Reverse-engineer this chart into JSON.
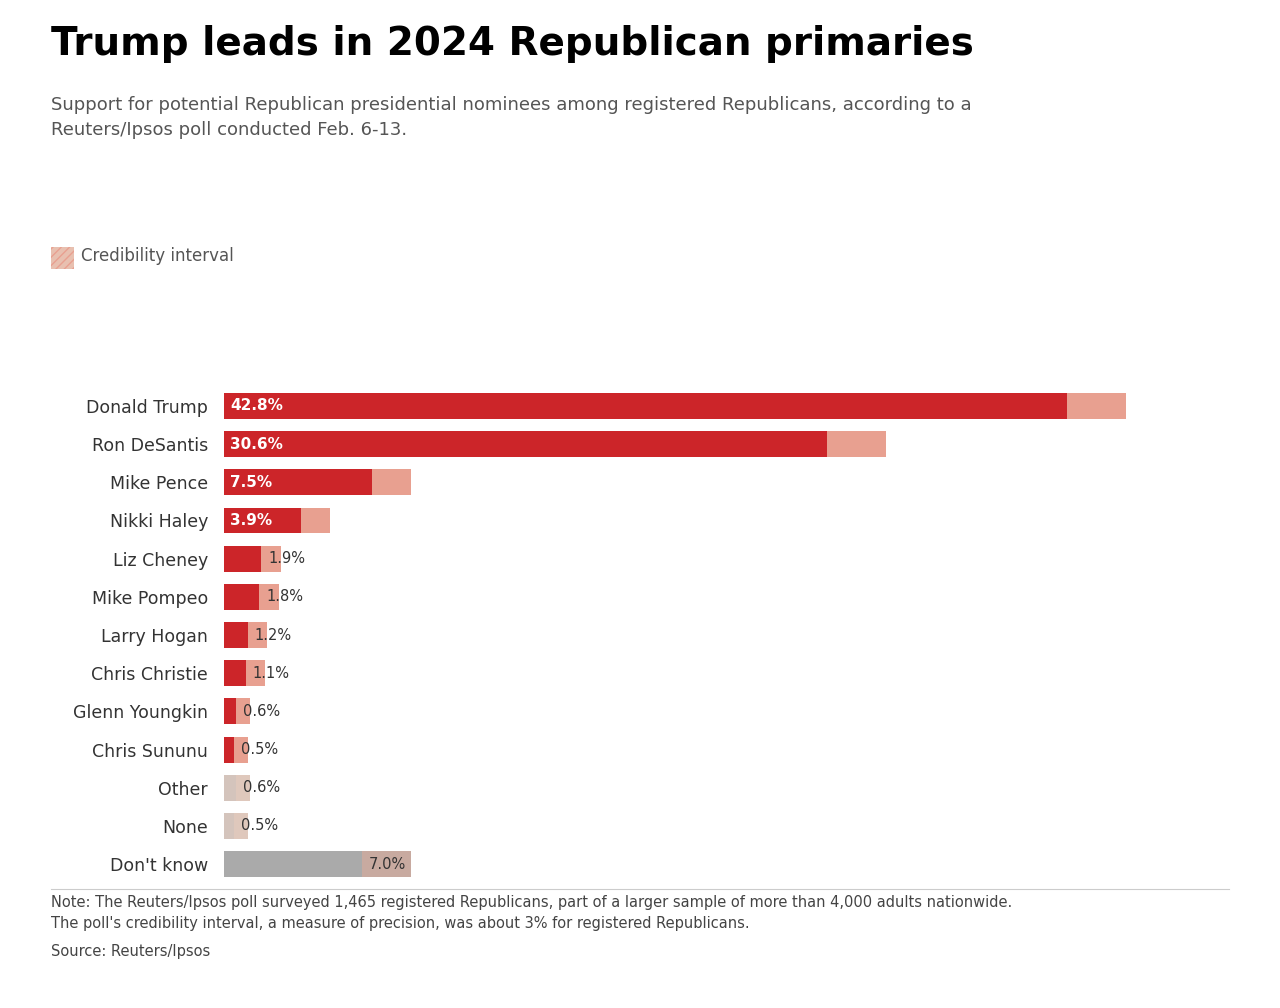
{
  "title": "Trump leads in 2024 Republican primaries",
  "subtitle": "Support for potential Republican presidential nominees among registered Republicans, according to a\nReuters/Ipsos poll conducted Feb. 6-13.",
  "note": "Note: The Reuters/Ipsos poll surveyed 1,465 registered Republicans, part of a larger sample of more than 4,000 adults nationwide.\nThe poll's credibility interval, a measure of precision, was about 3% for registered Republicans.",
  "source": "Source: Reuters/Ipsos",
  "legend_label": "Credibility interval",
  "candidates": [
    "Donald Trump",
    "Ron DeSantis",
    "Mike Pence",
    "Nikki Haley",
    "Liz Cheney",
    "Mike Pompeo",
    "Larry Hogan",
    "Chris Christie",
    "Glenn Youngkin",
    "Chris Sununu",
    "Other",
    "None",
    "Don't know"
  ],
  "values": [
    42.8,
    30.6,
    7.5,
    3.9,
    1.9,
    1.8,
    1.2,
    1.1,
    0.6,
    0.5,
    0.6,
    0.5,
    7.0
  ],
  "credibility_low": [
    39.8,
    27.6,
    5.5,
    2.4,
    0.9,
    0.8,
    0.5,
    0.4,
    0.2,
    0.1,
    0.2,
    0.1,
    5.0
  ],
  "credibility_high": [
    45.8,
    33.6,
    9.5,
    5.4,
    2.9,
    2.8,
    2.2,
    2.1,
    1.3,
    1.2,
    1.3,
    1.2,
    9.5
  ],
  "bar_colors": [
    "#cc2529",
    "#cc2529",
    "#cc2529",
    "#cc2529",
    "#cc2529",
    "#cc2529",
    "#cc2529",
    "#cc2529",
    "#cc2529",
    "#cc2529",
    "#d4c4bc",
    "#d4c4bc",
    "#aaaaaa"
  ],
  "hatch_face_colors": [
    "#e8a090",
    "#e8a090",
    "#e8a090",
    "#e8a090",
    "#e8a090",
    "#e8a090",
    "#e8a090",
    "#e8a090",
    "#e8a090",
    "#e8a090",
    "#dfc8bc",
    "#dfc8bc",
    "#c8aaa0"
  ],
  "label_inside": [
    true,
    true,
    true,
    true,
    false,
    false,
    false,
    false,
    false,
    false,
    false,
    false,
    false
  ],
  "background_color": "#ffffff",
  "xlim_max": 52
}
